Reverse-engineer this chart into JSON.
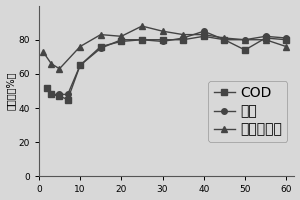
{
  "x_cod": [
    2,
    3,
    5,
    7,
    10,
    15,
    20,
    25,
    30,
    35,
    40,
    45,
    50,
    55,
    60
  ],
  "y_cod": [
    52,
    48,
    47,
    45,
    65,
    76,
    79,
    80,
    80,
    80,
    82,
    80,
    74,
    81,
    80
  ],
  "x_amm": [
    2,
    3,
    5,
    7,
    10,
    15,
    20,
    25,
    30,
    35,
    40,
    45,
    50,
    55,
    60
  ],
  "y_amm": [
    52,
    48,
    48,
    48,
    65,
    75,
    80,
    80,
    79,
    81,
    85,
    80,
    80,
    82,
    81
  ],
  "x_cop": [
    1,
    3,
    5,
    10,
    15,
    20,
    25,
    30,
    35,
    40,
    45,
    50,
    55,
    60
  ],
  "y_cop": [
    73,
    66,
    63,
    76,
    83,
    82,
    88,
    85,
    83,
    83,
    81,
    80,
    80,
    76
  ],
  "ylabel": "去除率（%）",
  "ylim": [
    0,
    100
  ],
  "xlim": [
    0,
    62
  ],
  "yticks": [
    0,
    20,
    40,
    60,
    80
  ],
  "xticks": [
    0,
    10,
    20,
    30,
    40,
    50,
    60
  ],
  "legend_COD": "COD",
  "legend_ammonia": "氨氮",
  "legend_copper": "二价铜离子",
  "line_color": "#444444",
  "markersize": 4,
  "linewidth": 1.0,
  "background_color": "#d8d8d8",
  "tick_labelsize": 6.5
}
